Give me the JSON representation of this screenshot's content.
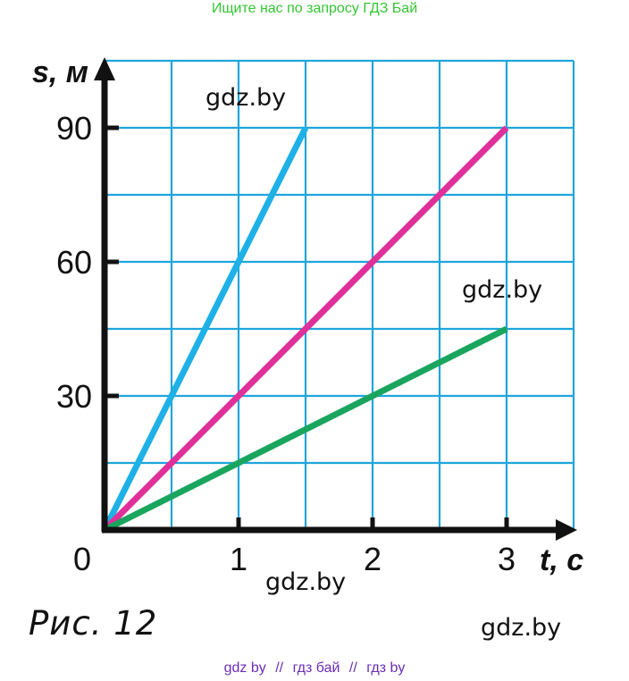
{
  "header": {
    "banner": "Ищите нас по запросу ГДЗ Бай"
  },
  "footer": {
    "links": [
      "gdz by",
      "//",
      "гдз бай",
      "//",
      "гдз by"
    ]
  },
  "watermarks": [
    "gdz.by",
    "gdz.by",
    "gdz.by",
    "gdz.by"
  ],
  "caption": "Рис. 12",
  "chart_data": {
    "type": "line",
    "x_axis_title": "t, с",
    "y_axis_title": "s, м",
    "origin_label": "0",
    "xlim": [
      0,
      3.5
    ],
    "ylim": [
      0,
      105
    ],
    "x_ticks": [
      1,
      2,
      3
    ],
    "x_tick_labels": [
      "1",
      "2",
      "3"
    ],
    "y_ticks": [
      30,
      60,
      90
    ],
    "y_tick_labels": [
      "30",
      "60",
      "90"
    ],
    "grid": true,
    "grid_step_x": 0.5,
    "grid_step_y": 15,
    "series": [
      {
        "color": "#1fb1e6",
        "x": [
          0,
          1.5
        ],
        "y": [
          0,
          90
        ]
      },
      {
        "color": "#e0309a",
        "x": [
          0,
          3
        ],
        "y": [
          0,
          90
        ]
      },
      {
        "color": "#1aa55e",
        "x": [
          0,
          3
        ],
        "y": [
          0,
          45
        ]
      }
    ],
    "colors": {
      "grid": "#1fa5dc",
      "axis": "#111111"
    }
  }
}
